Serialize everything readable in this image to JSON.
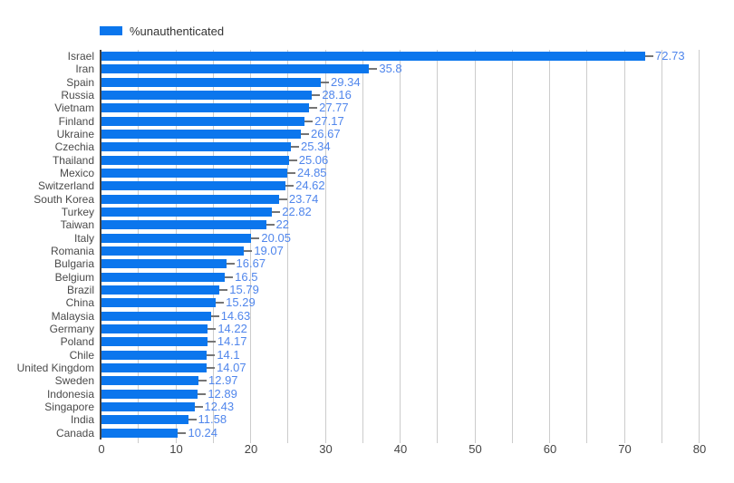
{
  "chart_data": {
    "type": "bar",
    "orientation": "horizontal",
    "legend_label": "%unauthenticated",
    "legend_position": "top",
    "grid": true,
    "categories": [
      "Israel",
      "Iran",
      "Spain",
      "Russia",
      "Vietnam",
      "Finland",
      "Ukraine",
      "Czechia",
      "Thailand",
      "Mexico",
      "Switzerland",
      "South Korea",
      "Turkey",
      "Taiwan",
      "Italy",
      "Romania",
      "Bulgaria",
      "Belgium",
      "Brazil",
      "China",
      "Malaysia",
      "Germany",
      "Poland",
      "Chile",
      "United Kingdom",
      "Sweden",
      "Indonesia",
      "Singapore",
      "India",
      "Canada"
    ],
    "values": [
      72.73,
      35.8,
      29.34,
      28.16,
      27.77,
      27.17,
      26.67,
      25.34,
      25.06,
      24.85,
      24.62,
      23.74,
      22.82,
      22,
      20.05,
      19.07,
      16.67,
      16.5,
      15.79,
      15.29,
      14.63,
      14.22,
      14.17,
      14.1,
      14.07,
      12.97,
      12.89,
      12.43,
      11.58,
      10.24
    ],
    "xlim": [
      0,
      80
    ],
    "x_ticks": [
      0,
      10,
      20,
      30,
      40,
      50,
      60,
      70,
      80
    ],
    "minor_gridline_step": 5,
    "xlabel": "",
    "ylabel": "",
    "title": "",
    "colors": {
      "bar": "#0b76ed",
      "annotation_text": "#5086ec",
      "annotation_stem": "#757575",
      "gridline": "#cccccc",
      "axis_line": "#424242",
      "tick_label": "#444444",
      "category_label": "#4a4a4a",
      "legend_text": "#333333",
      "background": "#ffffff"
    }
  }
}
